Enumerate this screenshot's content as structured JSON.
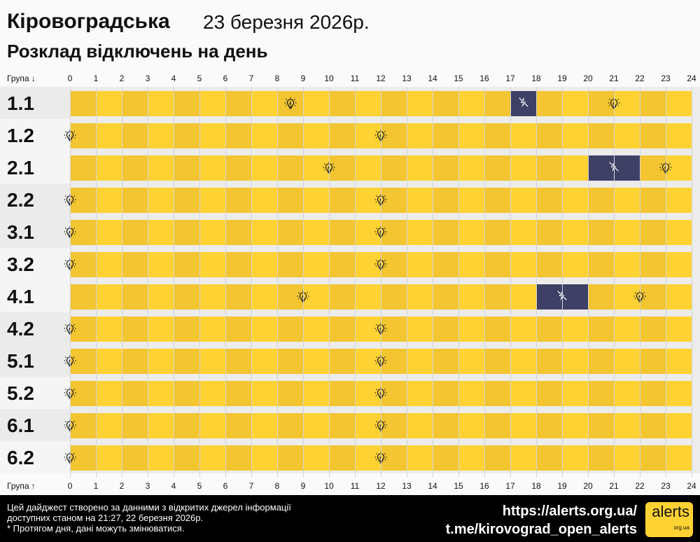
{
  "header": {
    "region": "Кіровоградська",
    "date": "23 березня 2026р.",
    "subtitle": "Розклад відключень на день"
  },
  "axis": {
    "top_label": "Група ↓",
    "bottom_label": "Група ↑",
    "hours": [
      "0",
      "1",
      "2",
      "3",
      "4",
      "5",
      "6",
      "7",
      "8",
      "9",
      "10",
      "11",
      "12",
      "13",
      "14",
      "15",
      "16",
      "17",
      "18",
      "19",
      "20",
      "21",
      "22",
      "23",
      "24"
    ]
  },
  "colors": {
    "on_dark": "#f2c531",
    "on_light": "#ffd233",
    "off": "#3f4066"
  },
  "groups": [
    {
      "name": "1.1",
      "outages": [
        [
          17,
          18
        ]
      ],
      "bulbs": [
        8.5,
        21
      ]
    },
    {
      "name": "1.2",
      "outages": [],
      "bulbs": [
        0,
        12
      ]
    },
    {
      "name": "2.1",
      "outages": [
        [
          20,
          22
        ]
      ],
      "bulbs": [
        10,
        23
      ]
    },
    {
      "name": "2.2",
      "outages": [],
      "bulbs": [
        0,
        12
      ]
    },
    {
      "name": "3.1",
      "outages": [],
      "bulbs": [
        0,
        12
      ]
    },
    {
      "name": "3.2",
      "outages": [],
      "bulbs": [
        0,
        12
      ]
    },
    {
      "name": "4.1",
      "outages": [
        [
          18,
          20
        ]
      ],
      "bulbs": [
        9,
        22
      ]
    },
    {
      "name": "4.2",
      "outages": [],
      "bulbs": [
        0,
        12
      ]
    },
    {
      "name": "5.1",
      "outages": [],
      "bulbs": [
        0,
        12
      ]
    },
    {
      "name": "5.2",
      "outages": [],
      "bulbs": [
        0,
        12
      ]
    },
    {
      "name": "6.1",
      "outages": [],
      "bulbs": [
        0,
        12
      ]
    },
    {
      "name": "6.2",
      "outages": [],
      "bulbs": [
        0,
        12
      ]
    }
  ],
  "footer": {
    "line1": "Цей дайджест створено за данними з відкритих джерел інформації",
    "line2": "доступних станом на 21:27, 22 березня 2026р.",
    "line3": "* Протягом дня, дані можуть змінюватися.",
    "site": "https://alerts.org.ua/",
    "telegram": "t.me/kirovograd_open_alerts",
    "logo_main": "alerts",
    "logo_sub": "org.ua"
  }
}
